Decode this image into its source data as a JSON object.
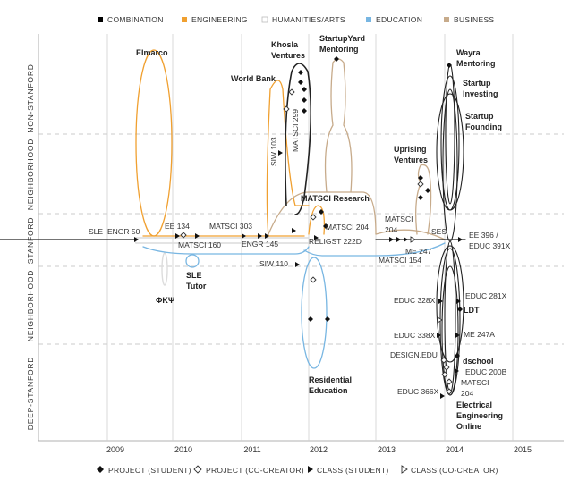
{
  "legend_top": [
    {
      "label": "COMBINATION",
      "color": "#000000"
    },
    {
      "label": "ENGINEERING",
      "color": "#f0a030"
    },
    {
      "label": "HUMANITIES/ARTS",
      "color": "#e8e8e8"
    },
    {
      "label": "EDUCATION",
      "color": "#78b6e2"
    },
    {
      "label": "BUSINESS",
      "color": "#c7ab8b"
    }
  ],
  "legend_bottom": [
    {
      "label": "PROJECT (STUDENT)",
      "marker": "diamond-filled"
    },
    {
      "label": "PROJECT (CO-CREATOR)",
      "marker": "diamond-open"
    },
    {
      "label": "CLASS (STUDENT)",
      "marker": "triangle-filled"
    },
    {
      "label": "CLASS (CO-CREATOR)",
      "marker": "triangle-open"
    }
  ],
  "bands": [
    "NON-STANFORD",
    "NEIGHBORHOOD",
    "STANFORD",
    "NEIGHBORHOOD",
    "DEEP-STANFORD"
  ],
  "years": [
    "2009",
    "2010",
    "2011",
    "2012",
    "2013",
    "2014",
    "2015"
  ],
  "events": {
    "sle": "SLE",
    "engr50": "ENGR 50",
    "elmarco": "Elmarco",
    "engr134": "EE 134",
    "matsci160": "MATSCI 160",
    "matsci303": "MATSCI 303",
    "engr145": "ENGR 145",
    "worldbank": "World Bank",
    "siw103": "SIW 103",
    "khosla1": "Khosla",
    "khosla2": "Ventures",
    "matsci299": "MATSCI 299",
    "startupyard1": "StartupYard",
    "startupyard2": "Mentoring",
    "siw110": "SIW 110",
    "sletutor1": "SLE",
    "sletutor2": "Tutor",
    "phikappapsi": "ΦΚΨ",
    "matsciresearch": "MATSCI Research",
    "matsci204a": "MATSCI 204",
    "religst": "RELIGST 222D",
    "residential1": "Residential",
    "residential2": "Education",
    "matsci204b1": "MATSCI",
    "matsci204b2": "204",
    "matsci154": "MATSCI 154",
    "me247": "ME 247",
    "uprising1": "Uprising",
    "uprising2": "Ventures",
    "ses": "SES",
    "ee396a": "EE 396 /",
    "ee396b": "EDUC 391X",
    "wayra1": "Wayra",
    "wayra2": "Mentoring",
    "startupinv1": "Startup",
    "startupinv2": "Investing",
    "startupfound1": "Startup",
    "startupfound2": "Founding",
    "educ328x": "EDUC 328X",
    "educ281x": "EDUC 281X",
    "ldt": "LDT",
    "educ338x": "EDUC 338X",
    "me247a": "ME 247A",
    "designedu": "DESIGN.EDU",
    "dschool": "dschool",
    "educ200b": "EDUC 200B",
    "matsci204c1": "MATSCI",
    "matsci204c2": "204",
    "educ366x": "EDUC 366X",
    "eeo1": "Electrical",
    "eeo2": "Engineering",
    "eeo3": "Online"
  }
}
